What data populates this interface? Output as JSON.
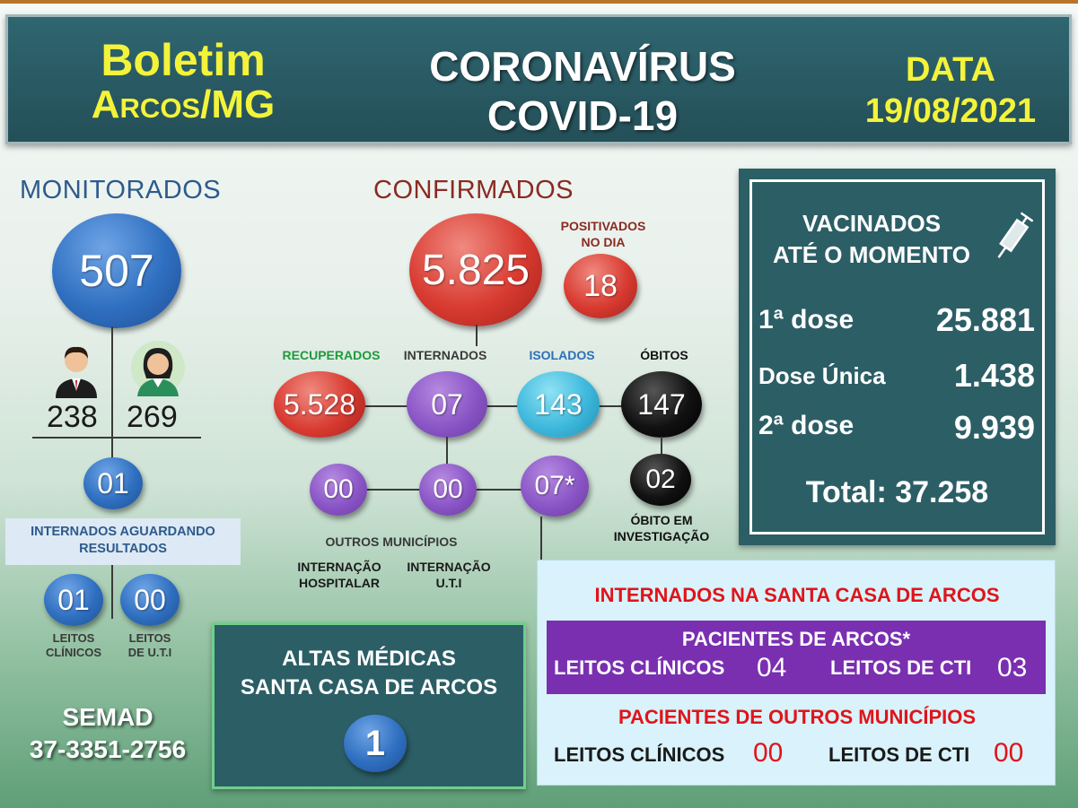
{
  "header": {
    "left_line1": "Boletim",
    "left_line2": "Arcos/MG",
    "title_line1": "CORONAVÍRUS",
    "title_line2": "COVID-19",
    "date_label": "DATA",
    "date_value": "19/08/2021"
  },
  "monitorados": {
    "title": "MONITORADOS",
    "total": "507",
    "male": "238",
    "female": "269",
    "internados_aguardando": "01",
    "internados_aguardando_label": "INTERNADOS AGUARDANDO RESULTADOS",
    "leitos_clinicos": "01",
    "leitos_clinicos_label_1": "LEITOS",
    "leitos_clinicos_label_2": "CLÍNICOS",
    "leitos_uti": "00",
    "leitos_uti_label_1": "LEITOS",
    "leitos_uti_label_2": "DE U.T.I"
  },
  "confirmados": {
    "title": "CONFIRMADOS",
    "total": "5.825",
    "positivados_label_1": "POSITIVADOS",
    "positivados_label_2": "NO DIA",
    "positivados": "18",
    "recuperados_label": "RECUPERADOS",
    "recuperados": "5.528",
    "internados_label": "INTERNADOS",
    "internados": "07",
    "isolados_label": "ISOLADOS",
    "isolados": "143",
    "obitos_label": "ÓBITOS",
    "obitos": "147",
    "obito_investigacao": "02",
    "obito_investigacao_label_1": "ÓBITO EM",
    "obito_investigacao_label_2": "INVESTIGAÇÃO",
    "outros_municipios": "00",
    "internacao_uti": "00",
    "pacientes_arcos": "07*",
    "outros_municipios_label": "OUTROS MUNICÍPIOS",
    "internacao_hospitalar_label_1": "INTERNAÇÃO",
    "internacao_hospitalar_label_2": "HOSPITALAR",
    "internacao_uti_label_1": "INTERNAÇÃO",
    "internacao_uti_label_2": "U.T.I"
  },
  "vacinados": {
    "title_line1": "VACINADOS",
    "title_line2": "ATÉ O MOMENTO",
    "dose1_label": "1ª dose",
    "dose1": "25.881",
    "dose_unica_label": "Dose Única",
    "dose_unica": "1.438",
    "dose2_label": "2ª dose",
    "dose2": "9.939",
    "total": "Total: 37.258"
  },
  "altas": {
    "line1": "ALTAS MÉDICAS",
    "line2": "SANTA CASA DE ARCOS",
    "value": "1"
  },
  "santa_casa": {
    "title": "INTERNADOS NA SANTA CASA DE ARCOS",
    "arcos_title": "PACIENTES DE ARCOS*",
    "arcos_clinicos_label": "LEITOS CLÍNICOS",
    "arcos_clinicos": "04",
    "arcos_cti_label": "LEITOS DE CTI",
    "arcos_cti": "03",
    "outros_title": "PACIENTES DE OUTROS MUNICÍPIOS",
    "outros_clinicos_label": "LEITOS CLÍNICOS",
    "outros_clinicos": "00",
    "outros_cti_label": "LEITOS DE CTI",
    "outros_cti": "00"
  },
  "footer": {
    "org": "SEMAD",
    "phone": "37-3351-2756"
  },
  "colors": {
    "header_bg": "#2f6670",
    "yellow": "#f3f33a",
    "box_bg": "#2c5e66",
    "purple_band": "#7a2fb0",
    "red_text": "#e0141a"
  }
}
